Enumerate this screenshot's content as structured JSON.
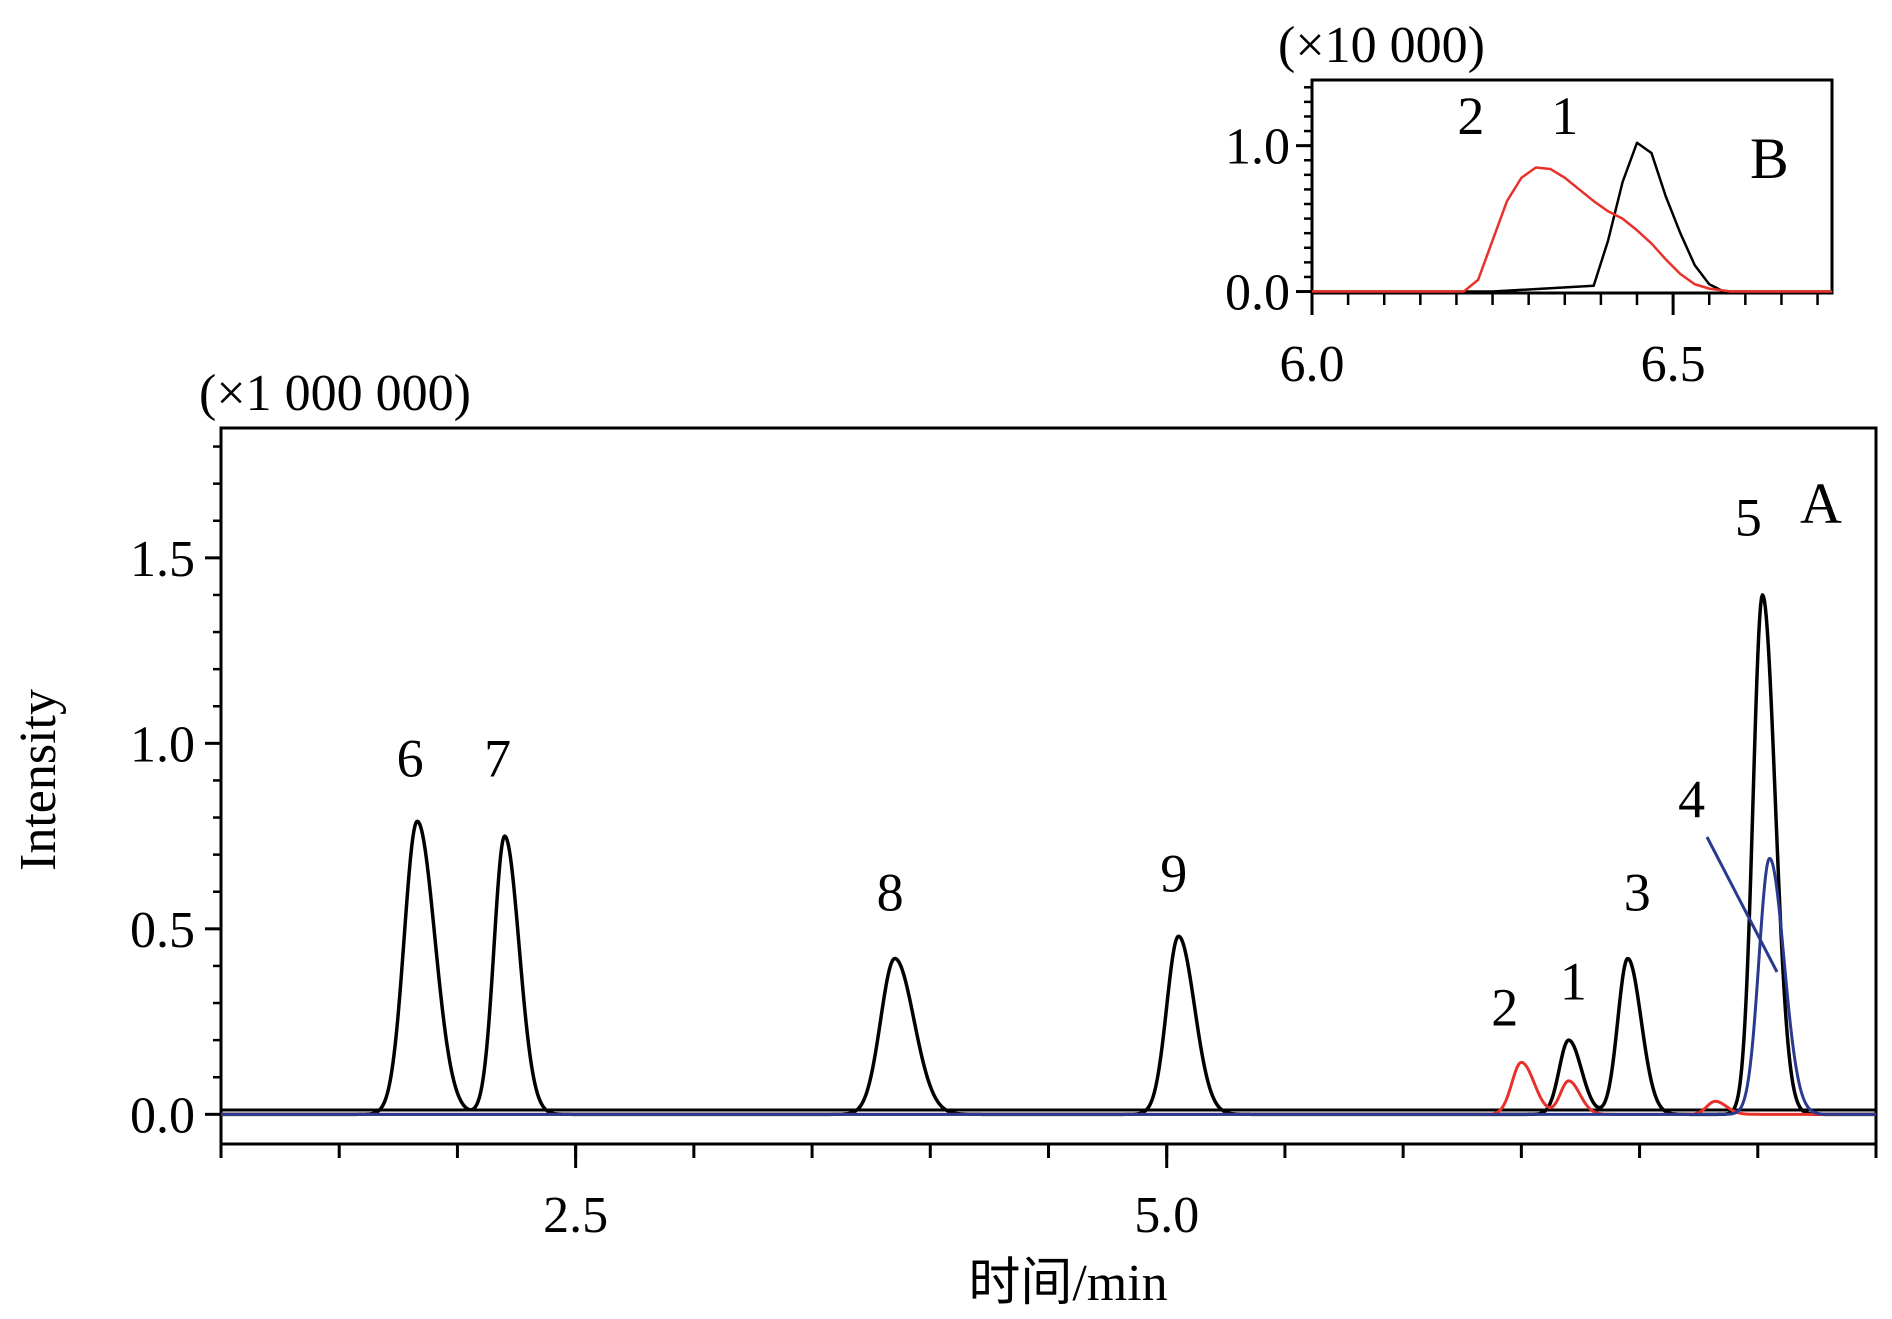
{
  "chart_data": [
    {
      "type": "line",
      "panel_label": "A",
      "xlabel": "时间/min",
      "ylabel": "Intensity",
      "y_multiplier_label": "(×1 000 000)",
      "xlim": [
        1.0,
        8.0
      ],
      "ylim": [
        -0.08,
        1.85
      ],
      "x_ticks": [
        {
          "value": 2.5,
          "label": "2.5"
        },
        {
          "value": 5.0,
          "label": "5.0"
        }
      ],
      "y_ticks": [
        {
          "value": 0.0,
          "label": "0.0"
        },
        {
          "value": 0.5,
          "label": "0.5"
        },
        {
          "value": 1.0,
          "label": "1.0"
        },
        {
          "value": 1.5,
          "label": "1.5"
        }
      ],
      "grid": false,
      "series": [
        {
          "color": "#000000",
          "peaks": [
            {
              "rt": 1.83,
              "height": 0.79,
              "width": 0.055
            },
            {
              "rt": 2.2,
              "height": 0.75,
              "width": 0.045
            },
            {
              "rt": 3.85,
              "height": 0.42,
              "width": 0.06
            },
            {
              "rt": 5.05,
              "height": 0.48,
              "width": 0.05
            },
            {
              "rt": 6.7,
              "height": 0.2,
              "width": 0.04
            },
            {
              "rt": 6.95,
              "height": 0.42,
              "width": 0.042
            },
            {
              "rt": 7.52,
              "height": 1.4,
              "width": 0.04
            }
          ]
        },
        {
          "color": "#e8312a",
          "peaks": [
            {
              "rt": 6.5,
              "height": 0.14,
              "width": 0.04
            },
            {
              "rt": 6.7,
              "height": 0.09,
              "width": 0.035
            },
            {
              "rt": 7.32,
              "height": 0.035,
              "width": 0.035
            }
          ]
        },
        {
          "color": "#2b3a8f",
          "peaks": [
            {
              "rt": 7.55,
              "height": 0.69,
              "width": 0.045
            }
          ]
        }
      ],
      "annotations": [
        {
          "text": "6",
          "x": 1.8,
          "y": 0.91
        },
        {
          "text": "7",
          "x": 2.17,
          "y": 0.91
        },
        {
          "text": "8",
          "x": 3.83,
          "y": 0.55
        },
        {
          "text": "9",
          "x": 5.03,
          "y": 0.6
        },
        {
          "text": "2",
          "x": 6.43,
          "y": 0.24
        },
        {
          "text": "1",
          "x": 6.72,
          "y": 0.31
        },
        {
          "text": "3",
          "x": 6.99,
          "y": 0.55
        },
        {
          "text": "4",
          "x": 7.22,
          "y": 0.8
        },
        {
          "text": "5",
          "x": 7.46,
          "y": 1.56
        }
      ]
    },
    {
      "type": "line",
      "panel_label": "B",
      "y_multiplier_label": "(×10 000)",
      "xlim": [
        6.0,
        6.72
      ],
      "ylim": [
        -0.01,
        1.45
      ],
      "x_ticks": [
        {
          "value": 6.0,
          "label": "6.0"
        },
        {
          "value": 6.5,
          "label": "6.5"
        }
      ],
      "y_ticks": [
        {
          "value": 0.0,
          "label": "0.0"
        },
        {
          "value": 1.0,
          "label": "1.0"
        }
      ],
      "grid": false,
      "series": [
        {
          "color": "#000000",
          "x": [
            6.0,
            6.25,
            6.39,
            6.41,
            6.43,
            6.45,
            6.47,
            6.49,
            6.51,
            6.53,
            6.55,
            6.57,
            6.72
          ],
          "y": [
            0.0,
            0.0,
            0.04,
            0.35,
            0.75,
            1.02,
            0.95,
            0.65,
            0.4,
            0.18,
            0.05,
            0.0,
            0.0
          ]
        },
        {
          "color": "#e8312a",
          "x": [
            6.0,
            6.21,
            6.23,
            6.25,
            6.27,
            6.29,
            6.31,
            6.33,
            6.35,
            6.37,
            6.39,
            6.41,
            6.43,
            6.45,
            6.47,
            6.49,
            6.51,
            6.53,
            6.55,
            6.58,
            6.72
          ],
          "y": [
            0.0,
            0.0,
            0.08,
            0.35,
            0.62,
            0.78,
            0.85,
            0.84,
            0.78,
            0.7,
            0.62,
            0.55,
            0.5,
            0.42,
            0.33,
            0.22,
            0.12,
            0.05,
            0.02,
            0.0,
            0.0
          ]
        }
      ],
      "annotations": [
        {
          "text": "2",
          "x": 6.22,
          "y": 1.08
        },
        {
          "text": "1",
          "x": 6.35,
          "y": 1.08
        }
      ]
    }
  ]
}
